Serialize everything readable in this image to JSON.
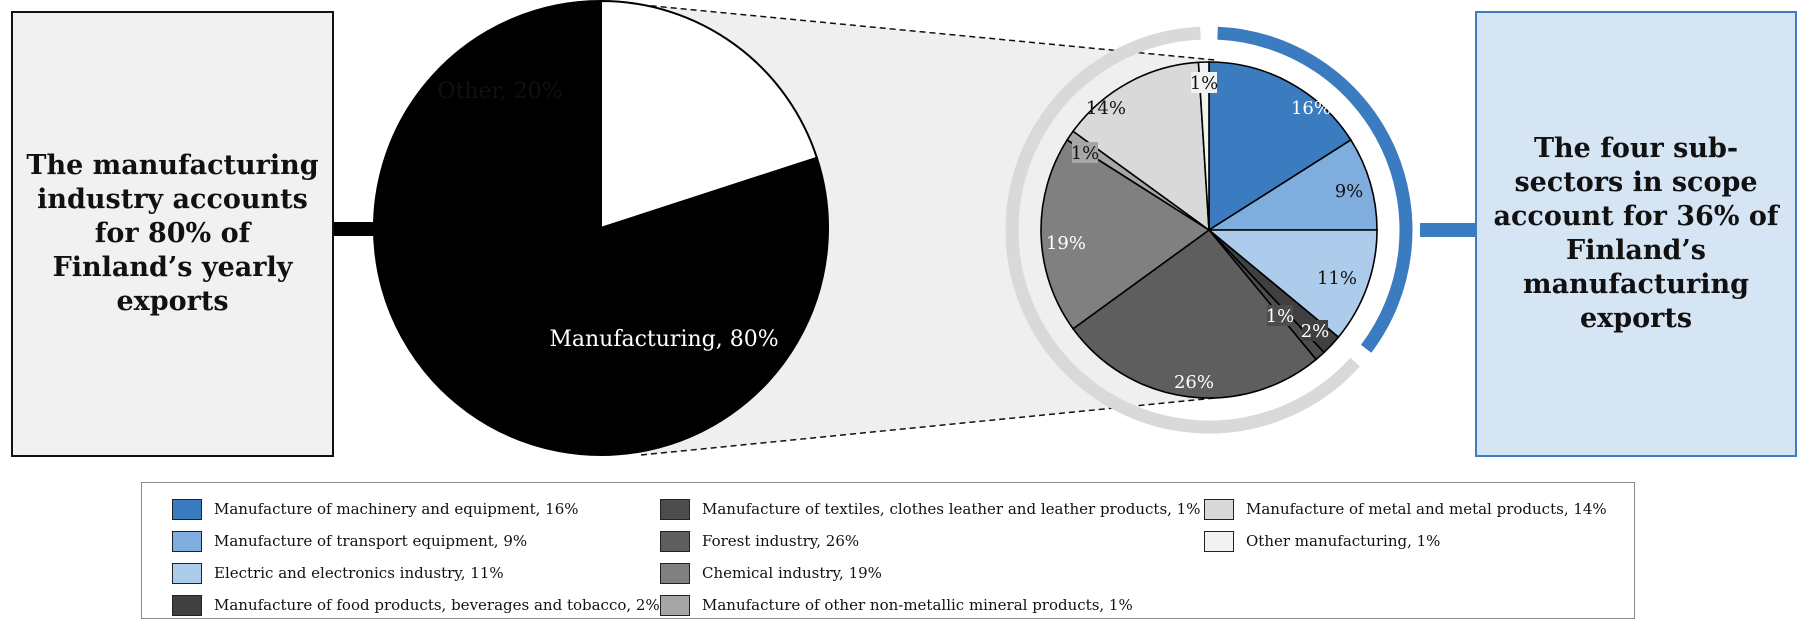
{
  "left_box": {
    "text": "The manufacturing industry accounts for 80% of Finland’s yearly exports"
  },
  "right_box": {
    "text": "The four sub-sectors in scope account for 36% of Finland’s manufacturing exports"
  },
  "chart_data": [
    {
      "type": "pie",
      "slices": [
        {
          "label": "Other",
          "value": 20,
          "display": "Other, 20%",
          "color": "#ffffff"
        },
        {
          "label": "Manufacturing",
          "value": 80,
          "display": "Manufacturing, 80%",
          "color": "#000000"
        }
      ]
    },
    {
      "type": "pie",
      "highlight_ring": {
        "value": 36,
        "color": "#3b7bbf",
        "rest_color": "#d9d9d9"
      },
      "slices": [
        {
          "label": "Manufacture of machinery and equipment",
          "value": 16,
          "display": "16%",
          "color": "#3b7bbf",
          "text_color": "#ffffff"
        },
        {
          "label": "Manufacture of transport equipment",
          "value": 9,
          "display": "9%",
          "color": "#7fadde",
          "text_color": "#111111"
        },
        {
          "label": "Electric and electronics industry",
          "value": 11,
          "display": "11%",
          "color": "#adcbea",
          "text_color": "#111111"
        },
        {
          "label": "Manufacture of food products, beverages and tobacco",
          "value": 2,
          "display": "2%",
          "color": "#404040",
          "text_color": "#ffffff"
        },
        {
          "label": "Manufacture of textiles, clothes leather and leather products",
          "value": 1,
          "display": "1%",
          "color": "#4d4d4d",
          "text_color": "#ffffff"
        },
        {
          "label": "Forest industry",
          "value": 26,
          "display": "26%",
          "color": "#5e5e5e",
          "text_color": "#ffffff"
        },
        {
          "label": "Chemical industry",
          "value": 19,
          "display": "19%",
          "color": "#808080",
          "text_color": "#ffffff"
        },
        {
          "label": "Manufacture of other non-metallic mineral products",
          "value": 1,
          "display": "1%",
          "color": "#a6a6a6",
          "text_color": "#111111"
        },
        {
          "label": "Manufacture of metal and metal products",
          "value": 14,
          "display": "14%",
          "color": "#d9d9d9",
          "text_color": "#111111"
        },
        {
          "label": "Other manufacturing",
          "value": 1,
          "display": "1%",
          "color": "#f2f2f2",
          "text_color": "#111111"
        }
      ]
    }
  ],
  "legend": {
    "columns": [
      [
        {
          "label": "Manufacture of machinery and equipment, 16%",
          "color": "#3b7bbf"
        },
        {
          "label": "Manufacture of transport equipment, 9%",
          "color": "#7fadde"
        },
        {
          "label": "Electric and electronics industry, 11%",
          "color": "#adcbea"
        },
        {
          "label": "Manufacture of food products, beverages and tobacco, 2%",
          "color": "#404040"
        }
      ],
      [
        {
          "label": "Manufacture of textiles, clothes leather and leather products, 1%",
          "color": "#4d4d4d"
        },
        {
          "label": "Forest industry, 26%",
          "color": "#5e5e5e"
        },
        {
          "label": "Chemical industry, 19%",
          "color": "#808080"
        },
        {
          "label": "Manufacture of other non-metallic mineral products, 1%",
          "color": "#a6a6a6"
        }
      ],
      [
        {
          "label": "Manufacture of metal and metal products, 14%",
          "color": "#d9d9d9"
        },
        {
          "label": "Other manufacturing, 1%",
          "color": "#f2f2f2"
        }
      ]
    ]
  }
}
